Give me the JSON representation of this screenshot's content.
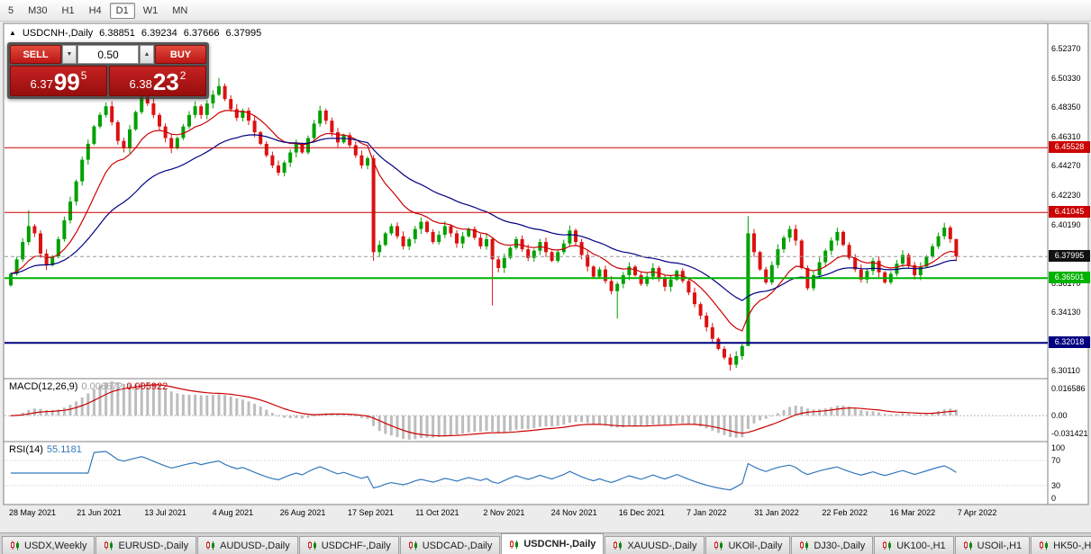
{
  "window": {
    "toolbar": {
      "timeframes": [
        "5",
        "M30",
        "H1",
        "H4",
        "D1",
        "W1",
        "MN"
      ],
      "active": "D1"
    }
  },
  "chart_title": {
    "collapse_icon": "▲",
    "symbol": "USDCNH-,Daily",
    "open": "6.38851",
    "high": "6.39234",
    "low": "6.37666",
    "close": "6.37995"
  },
  "trade_panel": {
    "sell_label": "SELL",
    "buy_label": "BUY",
    "volume": "0.50",
    "volume_down_icon": "▼",
    "volume_up_icon": "▲",
    "sell_price_small": "6.37",
    "sell_price_big": "99",
    "sell_price_sup": "5",
    "buy_price_small": "6.38",
    "buy_price_big": "23",
    "buy_price_sup": "2"
  },
  "indicators": {
    "macd": {
      "label": "MACD(12,26,9)",
      "value_main": "0.006672",
      "value_signal": "0.005922",
      "axis_top": "0.016586",
      "axis_zero": "0.00",
      "axis_bottom": "-0.031421"
    },
    "rsi": {
      "label": "RSI(14)",
      "value": "55.1181",
      "axis_labels": [
        "100",
        "70",
        "30",
        "0"
      ]
    }
  },
  "tab_bar": {
    "tabs": [
      "USDX,Weekly",
      "EURUSD-,Daily",
      "AUDUSD-,Daily",
      "USDCHF-,Daily",
      "USDCAD-,Daily",
      "USDCNH-,Daily",
      "XAUUSD-,Daily",
      "UKOil-,Daily",
      "DJ30-,Daily",
      "UK100-,H1",
      "USOil-,H1",
      "HK50-,H1"
    ],
    "active": "USDCNH-,Daily"
  },
  "chart_data": {
    "type": "candlestick",
    "symbol": "USDCNH-",
    "timeframe": "Daily",
    "title": "USDCNH-,Daily",
    "current_ohlc": {
      "open": 6.38851,
      "high": 6.39234,
      "low": 6.37666,
      "close": 6.37995
    },
    "x_axis_dates": [
      "28 May 2021",
      "21 Jun 2021",
      "13 Jul 2021",
      "4 Aug 2021",
      "26 Aug 2021",
      "17 Sep 2021",
      "11 Oct 2021",
      "2 Nov 2021",
      "24 Nov 2021",
      "16 Dec 2021",
      "7 Jan 2022",
      "31 Jan 2022",
      "22 Feb 2022",
      "16 Mar 2022",
      "7 Apr 2022"
    ],
    "y_axis_ticks": [
      "6.52370",
      "6.50330",
      "6.48350",
      "6.46310",
      "6.44270",
      "6.42230",
      "6.40190",
      "6.38150",
      "6.36170",
      "6.34130",
      "6.32090",
      "6.30110"
    ],
    "y_range": [
      6.2954,
      6.5414
    ],
    "grid": false,
    "first_open": 6.36,
    "closes": [
      6.368,
      6.378,
      6.39,
      6.401,
      6.396,
      6.382,
      6.374,
      6.38,
      6.392,
      6.405,
      6.418,
      6.432,
      6.447,
      6.458,
      6.47,
      6.478,
      6.484,
      6.473,
      6.46,
      6.455,
      6.468,
      6.48,
      6.492,
      6.486,
      6.478,
      6.47,
      6.462,
      6.455,
      6.462,
      6.47,
      6.478,
      6.484,
      6.478,
      6.486,
      6.492,
      6.498,
      6.489,
      6.482,
      6.476,
      6.481,
      6.474,
      6.466,
      6.458,
      6.45,
      6.443,
      6.438,
      6.445,
      6.452,
      6.458,
      6.452,
      6.462,
      6.472,
      6.481,
      6.474,
      6.466,
      6.459,
      6.464,
      6.457,
      6.45,
      6.443,
      6.448,
      6.383,
      6.388,
      6.396,
      6.401,
      6.394,
      6.387,
      6.392,
      6.399,
      6.404,
      6.397,
      6.39,
      6.395,
      6.401,
      6.396,
      6.389,
      6.394,
      6.399,
      6.393,
      6.387,
      6.392,
      6.378,
      6.372,
      6.379,
      6.386,
      6.392,
      6.385,
      6.379,
      6.384,
      6.39,
      6.383,
      6.377,
      6.383,
      6.389,
      6.398,
      6.39,
      6.381,
      6.373,
      6.366,
      6.371,
      6.363,
      6.356,
      6.361,
      6.367,
      6.373,
      6.367,
      6.361,
      6.366,
      6.372,
      6.365,
      6.359,
      6.364,
      6.37,
      6.363,
      6.355,
      6.347,
      6.339,
      6.331,
      6.323,
      6.316,
      6.31,
      6.305,
      6.311,
      6.318,
      6.396,
      6.383,
      6.371,
      6.362,
      6.374,
      6.385,
      6.393,
      6.399,
      6.391,
      6.372,
      6.358,
      6.367,
      6.376,
      6.384,
      6.391,
      6.397,
      6.388,
      6.379,
      6.371,
      6.364,
      6.37,
      6.377,
      6.369,
      6.362,
      6.368,
      6.375,
      6.381,
      6.374,
      6.367,
      6.373,
      6.38,
      6.387,
      6.394,
      6.4,
      6.392,
      6.38
    ],
    "wick_high_overrides": {
      "3": 6.412,
      "22": 6.4995,
      "35": 6.5037,
      "124": 6.408,
      "159": 6.3923
    },
    "wick_low_overrides": {
      "61": 6.377,
      "81": 6.346,
      "102": 6.337,
      "121": 6.301,
      "124": 6.318,
      "159": 6.3767
    },
    "levels": [
      {
        "value": 6.45528,
        "label": "6.45528",
        "color": "#cc0000",
        "thickness": 1
      },
      {
        "value": 6.41045,
        "label": "6.41045",
        "color": "#cc0000",
        "thickness": 1
      },
      {
        "value": 6.36501,
        "label": "6.36501",
        "color": "#00b300",
        "thickness": 2
      },
      {
        "value": 6.32018,
        "label": "6.32018",
        "color": "#000080",
        "thickness": 2
      }
    ],
    "current_price": {
      "value": 6.37995,
      "label": "6.37995",
      "badge_color": "#111111"
    },
    "moving_averages": [
      {
        "period": 12,
        "color": "#cc0000"
      },
      {
        "period": 30,
        "color": "#000080"
      }
    ],
    "indicator_panels": [
      {
        "name": "MACD",
        "params": [
          12,
          26,
          9
        ],
        "source": "closes",
        "bar_color": "#bdbdbd",
        "signal_color": "#cc0000"
      },
      {
        "name": "RSI",
        "params": [
          14
        ],
        "source": "closes",
        "line_color": "#3377bb",
        "levels": [
          70,
          30
        ]
      }
    ],
    "colors": {
      "up": "#00a000",
      "down": "#dc1111",
      "ma_fast": "#cc0000",
      "ma_slow": "#000080",
      "macd_bar": "#bdbdbd",
      "macd_signal": "#cc0000",
      "rsi_line": "#3377bb",
      "background": "#ffffff"
    }
  }
}
